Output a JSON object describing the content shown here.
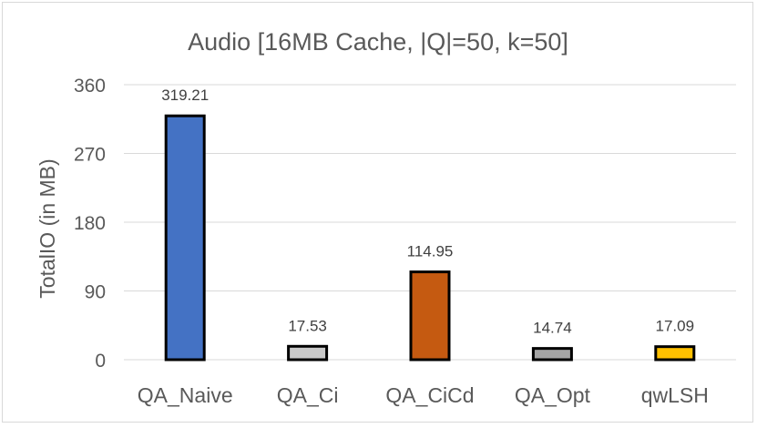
{
  "chart_data": {
    "type": "bar",
    "title": "Audio [16MB Cache, |Q|=50, k=50]",
    "ylabel": "TotalIO (in MB)",
    "xlabel": "",
    "ylim": [
      0,
      360
    ],
    "yticks": [
      0,
      90,
      180,
      270,
      360
    ],
    "grid": true,
    "categories": [
      "QA_Naive",
      "QA_Ci",
      "QA_CiCd",
      "QA_Opt",
      "qwLSH"
    ],
    "values": [
      319.21,
      17.53,
      114.95,
      14.74,
      17.09
    ],
    "data_labels": [
      "319.21",
      "17.53",
      "114.95",
      "14.74",
      "17.09"
    ],
    "colors": [
      "#4472c4",
      "#c9c9c9",
      "#c55a11",
      "#a5a5a5",
      "#ffc000"
    ],
    "bar_outline": "#000000"
  }
}
